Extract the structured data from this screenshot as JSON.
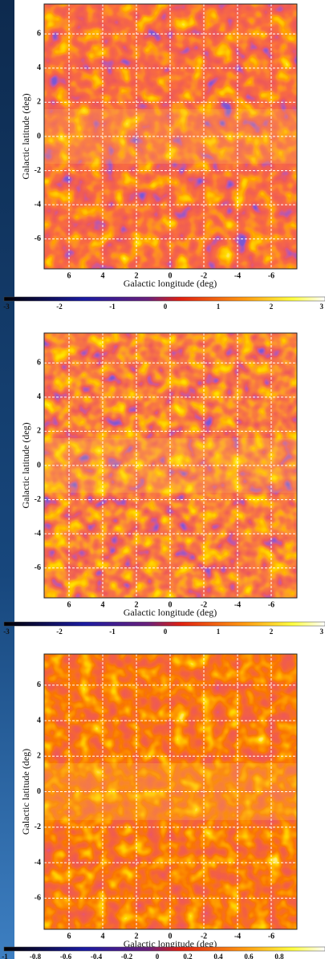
{
  "panels": [
    {
      "y_label": "Galactic latitude (deg)",
      "x_label": "Galactic longitude (deg)",
      "x_ticks": [
        "6",
        "4",
        "2",
        "0",
        "-2",
        "-4",
        "-6"
      ],
      "y_ticks": [
        "6",
        "4",
        "2",
        "0",
        "-2",
        "-4",
        "-6"
      ],
      "colorbar_ticks": [
        "-3",
        "-2",
        "-1",
        "0",
        "1",
        "2",
        "3"
      ]
    },
    {
      "y_label": "Galactic latitude (deg)",
      "x_label": "Galactic longitude (deg)",
      "x_ticks": [
        "6",
        "4",
        "2",
        "0",
        "-2",
        "-4",
        "-6"
      ],
      "y_ticks": [
        "6",
        "4",
        "2",
        "0",
        "-2",
        "-4",
        "-6"
      ],
      "colorbar_ticks": [
        "-3",
        "-2",
        "-1",
        "0",
        "1",
        "2",
        "3"
      ]
    },
    {
      "y_label": "Galactic latitude (deg)",
      "x_label": "Galactic longitude (deg)",
      "x_ticks": [
        "6",
        "4",
        "2",
        "0",
        "-2",
        "-4",
        "-6"
      ],
      "y_ticks": [
        "6",
        "4",
        "2",
        "0",
        "-2",
        "-4",
        "-6"
      ],
      "colorbar_ticks": [
        "-1",
        "-0.8",
        "-0.6",
        "-0.4",
        "-0.2",
        "0",
        "0.2",
        "0.4",
        "0.6",
        "0.8"
      ]
    }
  ]
}
